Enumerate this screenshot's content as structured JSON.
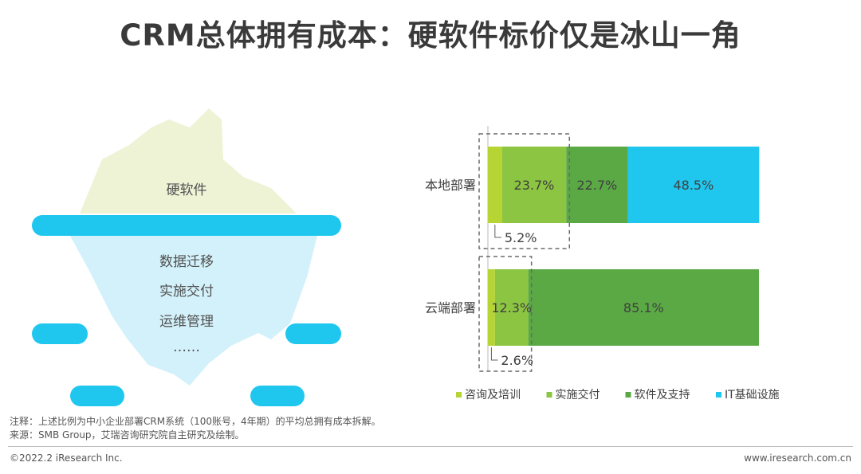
{
  "title": "CRM总体拥有成本：硬软件标价仅是冰山一角",
  "iceberg": {
    "above_label": "硬软件",
    "below_labels": [
      "数据迁移",
      "实施交付",
      "运维管理",
      "……"
    ]
  },
  "chart_data": {
    "type": "bar",
    "orientation": "horizontal",
    "stacked": true,
    "categories": [
      "本地部署",
      "云端部署"
    ],
    "series": [
      {
        "name": "咨询及培训",
        "values": [
          5.2,
          2.6
        ],
        "color": "#b6d433"
      },
      {
        "name": "实施交付",
        "values": [
          23.7,
          12.3
        ],
        "color": "#8cc541"
      },
      {
        "name": "软件及支持",
        "values": [
          22.7,
          85.1
        ],
        "color": "#5aa945"
      },
      {
        "name": "IT基础设施",
        "values": [
          48.5,
          0
        ],
        "color": "#1fc7ef"
      }
    ],
    "data_labels": {
      "本地部署": [
        "5.2%",
        "23.7%",
        "22.7%",
        "48.5%"
      ],
      "云端部署": [
        "2.6%",
        "12.3%",
        "85.1%",
        ""
      ]
    },
    "xlim": [
      0,
      100
    ],
    "legend_position": "bottom"
  },
  "footnotes": {
    "note": "注释：上述比例为中小企业部署CRM系统（100账号，4年期）的平均总拥有成本拆解。",
    "source": "来源：SMB Group，艾瑞咨询研究院自主研究及绘制。"
  },
  "footer": {
    "copyright": "©2022.2 iResearch Inc.",
    "website": "www.iresearch.com.cn"
  }
}
